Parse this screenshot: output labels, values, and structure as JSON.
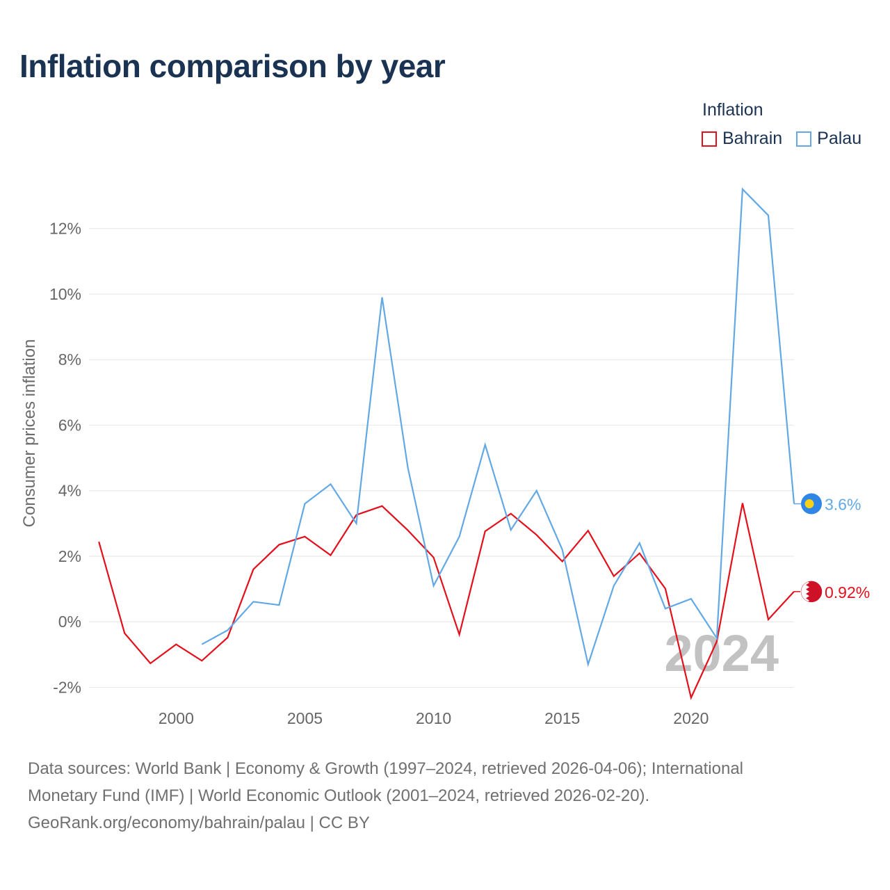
{
  "title": "Inflation comparison by year",
  "legend": {
    "title": "Inflation",
    "items": [
      {
        "name": "Bahrain",
        "color": "#e3101b"
      },
      {
        "name": "Palau",
        "color": "#62a8e5"
      }
    ]
  },
  "sources": {
    "line1": "Data sources: World Bank | Economy & Growth (1997–2024, retrieved 2026-04-06); International",
    "line2": "Monetary Fund (IMF) | World Economic Outlook (2001–2024, retrieved 2026-02-20).",
    "line3": "GeoRank.org/economy/bahrain/palau | CC BY"
  },
  "chart_data": {
    "type": "line",
    "title": "Inflation comparison by year",
    "xlabel": "",
    "ylabel": "Consumer prices inflation",
    "xlim": [
      1996.4,
      2024
    ],
    "ylim": [
      -2.5,
      13.5
    ],
    "yticks": [
      -2,
      0,
      2,
      4,
      6,
      8,
      10,
      12
    ],
    "ytick_labels": [
      "-2%",
      "0%",
      "2%",
      "4%",
      "6%",
      "8%",
      "10%",
      "12%"
    ],
    "xticks": [
      2000,
      2005,
      2010,
      2015,
      2020
    ],
    "xtick_labels": [
      "2000",
      "2005",
      "2010",
      "2015",
      "2020"
    ],
    "grid": true,
    "legend_position": "top-right",
    "watermark_year": "2024",
    "series": [
      {
        "name": "Bahrain",
        "color": "#e3101b",
        "flag": "bahrain-flag-icon",
        "end_label": "0.92%",
        "x": [
          1997,
          1998,
          1999,
          2000,
          2001,
          2002,
          2003,
          2004,
          2005,
          2006,
          2007,
          2008,
          2009,
          2010,
          2011,
          2012,
          2013,
          2014,
          2015,
          2016,
          2017,
          2018,
          2019,
          2020,
          2021,
          2022,
          2023,
          2024
        ],
        "values": [
          2.44,
          -0.35,
          -1.27,
          -0.69,
          -1.19,
          -0.48,
          1.6,
          2.35,
          2.6,
          2.03,
          3.26,
          3.53,
          2.79,
          1.96,
          -0.39,
          2.76,
          3.3,
          2.65,
          1.84,
          2.78,
          1.39,
          2.09,
          1.01,
          -2.32,
          -0.6,
          3.62,
          0.07,
          0.92
        ]
      },
      {
        "name": "Palau",
        "color": "#62a8e5",
        "flag": "palau-flag-icon",
        "end_label": "3.6%",
        "x": [
          2001,
          2002,
          2003,
          2004,
          2005,
          2006,
          2007,
          2008,
          2009,
          2010,
          2011,
          2012,
          2013,
          2014,
          2015,
          2016,
          2017,
          2018,
          2019,
          2020,
          2021,
          2022,
          2023,
          2024
        ],
        "values": [
          -0.69,
          -0.26,
          0.61,
          0.51,
          3.6,
          4.2,
          3.0,
          9.9,
          4.7,
          1.1,
          2.6,
          5.4,
          2.8,
          4.0,
          2.2,
          -1.3,
          1.1,
          2.4,
          0.4,
          0.7,
          -0.5,
          13.2,
          12.4,
          3.6
        ]
      }
    ]
  }
}
